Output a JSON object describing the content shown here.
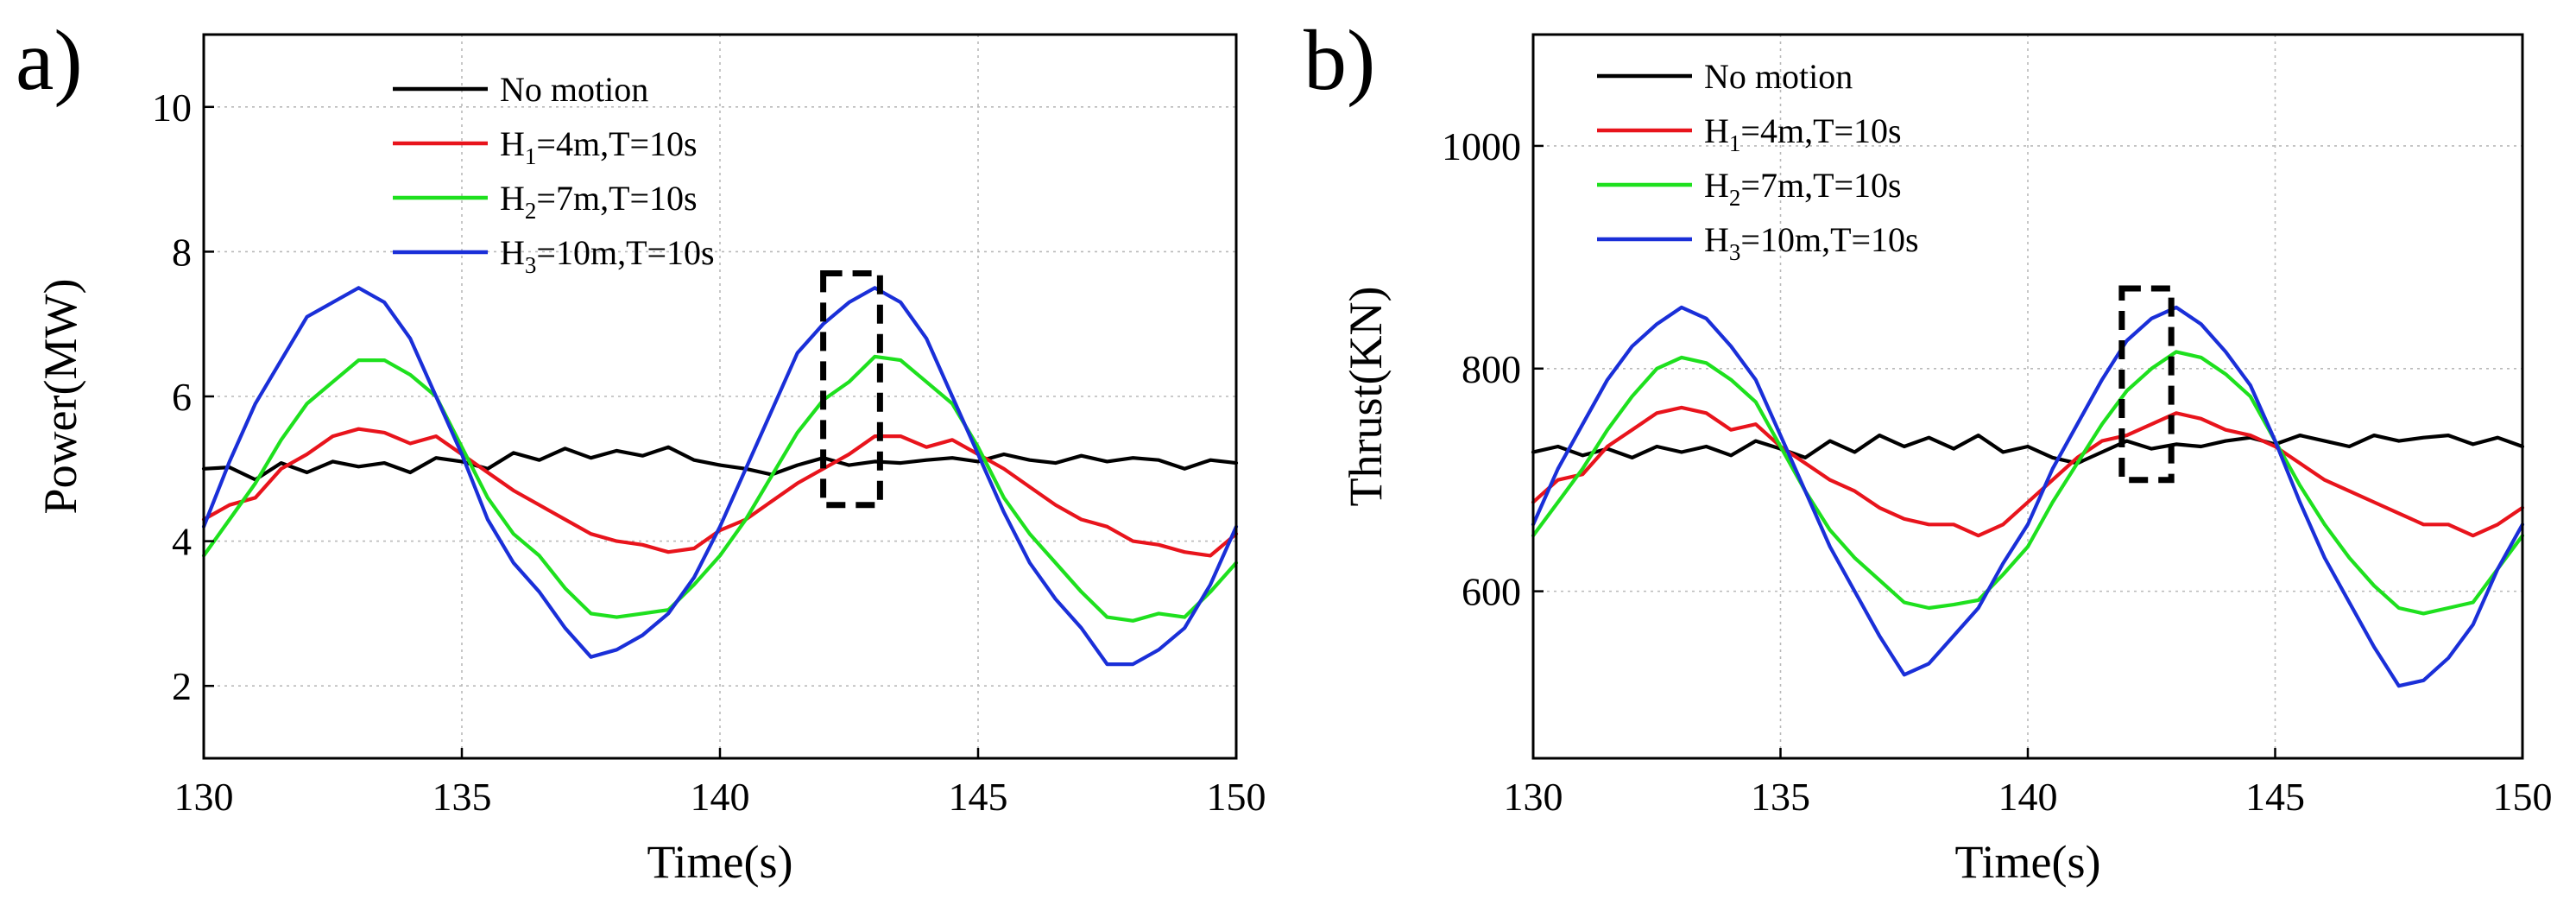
{
  "chart_data": [
    {
      "type": "line",
      "panel_label": "a)",
      "xlabel": "Time(s)",
      "ylabel": "Power(MW)",
      "xlim": [
        130,
        150
      ],
      "ylim": [
        1,
        11
      ],
      "xticks": [
        130,
        135,
        140,
        145,
        150
      ],
      "yticks": [
        2,
        4,
        6,
        8,
        10
      ],
      "grid": true,
      "legend_position": "top-left",
      "highlight_box": {
        "x_range": [
          142.0,
          143.1
        ],
        "y_range": [
          4.5,
          7.7
        ]
      },
      "series": [
        {
          "name": "No motion",
          "label_main": "No motion",
          "label_sub": "",
          "label_rest": "",
          "color": "#000000",
          "x": [
            130,
            130.5,
            131,
            131.5,
            132,
            132.5,
            133,
            133.5,
            134,
            134.5,
            135,
            135.5,
            136,
            136.5,
            137,
            137.5,
            138,
            138.5,
            139,
            139.5,
            140,
            140.5,
            141,
            141.5,
            142,
            142.5,
            143,
            143.5,
            144,
            144.5,
            145,
            145.5,
            146,
            146.5,
            147,
            147.5,
            148,
            148.5,
            149,
            149.5,
            150
          ],
          "y": [
            5.0,
            5.02,
            4.85,
            5.08,
            4.95,
            5.1,
            5.03,
            5.08,
            4.95,
            5.15,
            5.1,
            5.0,
            5.22,
            5.12,
            5.28,
            5.15,
            5.25,
            5.18,
            5.3,
            5.12,
            5.05,
            5.0,
            4.92,
            5.05,
            5.15,
            5.05,
            5.1,
            5.08,
            5.12,
            5.15,
            5.1,
            5.2,
            5.12,
            5.08,
            5.18,
            5.1,
            5.15,
            5.12,
            5.0,
            5.12,
            5.08
          ]
        },
        {
          "name": "H1=4m,T=10s",
          "label_main": "H",
          "label_sub": "1",
          "label_rest": "=4m,T=10s",
          "color": "#e8141c",
          "x": [
            130,
            130.5,
            131,
            131.5,
            132,
            132.5,
            133,
            133.5,
            134,
            134.5,
            135,
            135.5,
            136,
            136.5,
            137,
            137.5,
            138,
            138.5,
            139,
            139.5,
            140,
            140.5,
            141,
            141.5,
            142,
            142.5,
            143,
            143.5,
            144,
            144.5,
            145,
            145.5,
            146,
            146.5,
            147,
            147.5,
            148,
            148.5,
            149,
            149.5,
            150
          ],
          "y": [
            4.3,
            4.5,
            4.6,
            5.0,
            5.2,
            5.45,
            5.55,
            5.5,
            5.35,
            5.45,
            5.2,
            4.95,
            4.7,
            4.5,
            4.3,
            4.1,
            4.0,
            3.95,
            3.85,
            3.9,
            4.15,
            4.3,
            4.55,
            4.8,
            5.0,
            5.2,
            5.45,
            5.45,
            5.3,
            5.4,
            5.2,
            5.0,
            4.75,
            4.5,
            4.3,
            4.2,
            4.0,
            3.95,
            3.85,
            3.8,
            4.1
          ]
        },
        {
          "name": "H2=7m,T=10s",
          "label_main": "H",
          "label_sub": "2",
          "label_rest": "=7m,T=10s",
          "color": "#1ee01e",
          "x": [
            130,
            130.5,
            131,
            131.5,
            132,
            132.5,
            133,
            133.5,
            134,
            134.5,
            135,
            135.5,
            136,
            136.5,
            137,
            137.5,
            138,
            138.5,
            139,
            139.5,
            140,
            140.5,
            141,
            141.5,
            142,
            142.5,
            143,
            143.5,
            144,
            144.5,
            145,
            145.5,
            146,
            146.5,
            147,
            147.5,
            148,
            148.5,
            149,
            149.5,
            150
          ],
          "y": [
            3.8,
            4.3,
            4.8,
            5.4,
            5.9,
            6.2,
            6.5,
            6.5,
            6.3,
            6.0,
            5.3,
            4.6,
            4.1,
            3.8,
            3.35,
            3.0,
            2.95,
            3.0,
            3.05,
            3.4,
            3.8,
            4.3,
            4.9,
            5.5,
            5.95,
            6.2,
            6.55,
            6.5,
            6.2,
            5.9,
            5.3,
            4.6,
            4.1,
            3.7,
            3.3,
            2.95,
            2.9,
            3.0,
            2.95,
            3.3,
            3.7
          ]
        },
        {
          "name": "H3=10m,T=10s",
          "label_main": "H",
          "label_sub": "3",
          "label_rest": "=10m,T=10s",
          "color": "#1a2fd8",
          "x": [
            130,
            130.5,
            131,
            131.5,
            132,
            132.5,
            133,
            133.5,
            134,
            134.5,
            135,
            135.5,
            136,
            136.5,
            137,
            137.5,
            138,
            138.5,
            139,
            139.5,
            140,
            140.5,
            141,
            141.5,
            142,
            142.5,
            143,
            143.5,
            144,
            144.5,
            145,
            145.5,
            146,
            146.5,
            147,
            147.5,
            148,
            148.5,
            149,
            149.5,
            150
          ],
          "y": [
            4.2,
            5.1,
            5.9,
            6.5,
            7.1,
            7.3,
            7.5,
            7.3,
            6.8,
            6.0,
            5.2,
            4.3,
            3.7,
            3.3,
            2.8,
            2.4,
            2.5,
            2.7,
            3.0,
            3.5,
            4.2,
            5.0,
            5.8,
            6.6,
            7.0,
            7.3,
            7.5,
            7.3,
            6.8,
            6.0,
            5.2,
            4.4,
            3.7,
            3.2,
            2.8,
            2.3,
            2.3,
            2.5,
            2.8,
            3.4,
            4.2
          ]
        }
      ]
    },
    {
      "type": "line",
      "panel_label": "b)",
      "xlabel": "Time(s)",
      "ylabel": "Thrust(KN)",
      "xlim": [
        130,
        150
      ],
      "ylim": [
        450,
        1100
      ],
      "xticks": [
        130,
        135,
        140,
        145,
        150
      ],
      "yticks": [
        600,
        800,
        1000
      ],
      "grid": true,
      "legend_position": "top-left",
      "highlight_box": {
        "x_range": [
          141.9,
          142.9
        ],
        "y_range": [
          700,
          872
        ]
      },
      "series": [
        {
          "name": "No motion",
          "label_main": "No motion",
          "label_sub": "",
          "label_rest": "",
          "color": "#000000",
          "x": [
            130,
            130.5,
            131,
            131.5,
            132,
            132.5,
            133,
            133.5,
            134,
            134.5,
            135,
            135.5,
            136,
            136.5,
            137,
            137.5,
            138,
            138.5,
            139,
            139.5,
            140,
            140.5,
            141,
            141.5,
            142,
            142.5,
            143,
            143.5,
            144,
            144.5,
            145,
            145.5,
            146,
            146.5,
            147,
            147.5,
            148,
            148.5,
            149,
            149.5,
            150
          ],
          "y": [
            725,
            730,
            722,
            728,
            720,
            730,
            725,
            730,
            722,
            735,
            728,
            720,
            735,
            725,
            740,
            730,
            738,
            728,
            740,
            725,
            730,
            720,
            715,
            725,
            735,
            728,
            732,
            730,
            735,
            738,
            732,
            740,
            735,
            730,
            740,
            735,
            738,
            740,
            732,
            738,
            730
          ]
        },
        {
          "name": "H1=4m,T=10s",
          "label_main": "H",
          "label_sub": "1",
          "label_rest": "=4m,T=10s",
          "color": "#e8141c",
          "x": [
            130,
            130.5,
            131,
            131.5,
            132,
            132.5,
            133,
            133.5,
            134,
            134.5,
            135,
            135.5,
            136,
            136.5,
            137,
            137.5,
            138,
            138.5,
            139,
            139.5,
            140,
            140.5,
            141,
            141.5,
            142,
            142.5,
            143,
            143.5,
            144,
            144.5,
            145,
            145.5,
            146,
            146.5,
            147,
            147.5,
            148,
            148.5,
            149,
            149.5,
            150
          ],
          "y": [
            680,
            700,
            705,
            730,
            745,
            760,
            765,
            760,
            745,
            750,
            730,
            715,
            700,
            690,
            675,
            665,
            660,
            660,
            650,
            660,
            680,
            700,
            720,
            735,
            740,
            750,
            760,
            755,
            745,
            740,
            730,
            715,
            700,
            690,
            680,
            670,
            660,
            660,
            650,
            660,
            675
          ]
        },
        {
          "name": "H2=7m,T=10s",
          "label_main": "H",
          "label_sub": "2",
          "label_rest": "=7m,T=10s",
          "color": "#1ee01e",
          "x": [
            130,
            130.5,
            131,
            131.5,
            132,
            132.5,
            133,
            133.5,
            134,
            134.5,
            135,
            135.5,
            136,
            136.5,
            137,
            137.5,
            138,
            138.5,
            139,
            139.5,
            140,
            140.5,
            141,
            141.5,
            142,
            142.5,
            143,
            143.5,
            144,
            144.5,
            145,
            145.5,
            146,
            146.5,
            147,
            147.5,
            148,
            148.5,
            149,
            149.5,
            150
          ],
          "y": [
            650,
            680,
            710,
            745,
            775,
            800,
            810,
            805,
            790,
            770,
            730,
            690,
            655,
            630,
            610,
            590,
            585,
            588,
            592,
            615,
            640,
            680,
            715,
            750,
            780,
            800,
            815,
            810,
            795,
            775,
            735,
            695,
            660,
            630,
            605,
            585,
            580,
            585,
            590,
            620,
            650
          ]
        },
        {
          "name": "H3=10m,T=10s",
          "label_main": "H",
          "label_sub": "3",
          "label_rest": "=10m,T=10s",
          "color": "#1a2fd8",
          "x": [
            130,
            130.5,
            131,
            131.5,
            132,
            132.5,
            133,
            133.5,
            134,
            134.5,
            135,
            135.5,
            136,
            136.5,
            137,
            137.5,
            138,
            138.5,
            139,
            139.5,
            140,
            140.5,
            141,
            141.5,
            142,
            142.5,
            143,
            143.5,
            144,
            144.5,
            145,
            145.5,
            146,
            146.5,
            147,
            147.5,
            148,
            148.5,
            149,
            149.5,
            150
          ],
          "y": [
            660,
            710,
            750,
            790,
            820,
            840,
            855,
            845,
            820,
            790,
            740,
            690,
            640,
            600,
            560,
            525,
            535,
            560,
            585,
            625,
            660,
            710,
            750,
            790,
            825,
            845,
            855,
            840,
            815,
            785,
            735,
            680,
            630,
            590,
            550,
            515,
            520,
            540,
            570,
            620,
            660
          ]
        }
      ]
    }
  ]
}
